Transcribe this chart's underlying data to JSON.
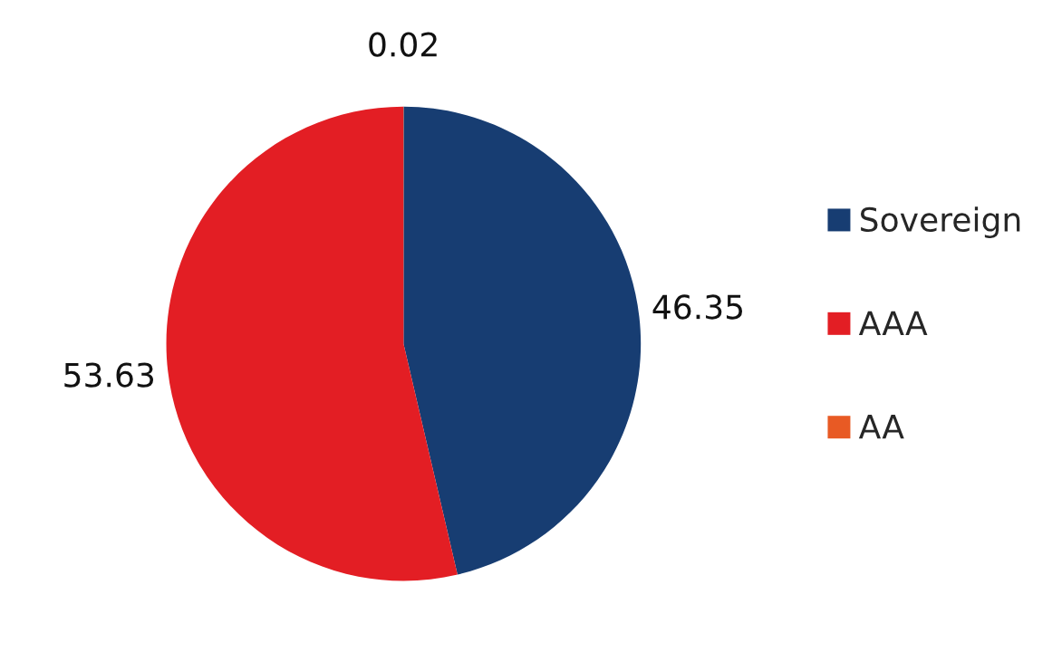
{
  "chart_data": {
    "type": "pie",
    "categories": [
      "Sovereign",
      "AAA",
      "AA"
    ],
    "values": [
      46.35,
      53.63,
      0.02
    ],
    "colors": [
      "#173d72",
      "#e31e24",
      "#e85a24"
    ],
    "data_labels": true,
    "legend": "right"
  }
}
